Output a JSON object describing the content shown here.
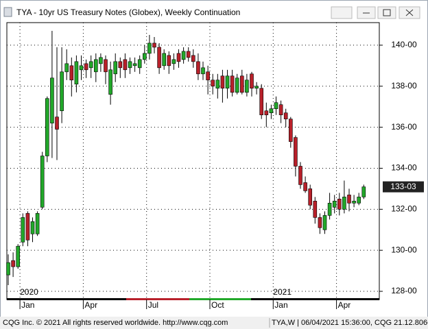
{
  "window": {
    "title": "TYA - 10yr US Treasury Notes (Globex), Weekly Continuation"
  },
  "footer": {
    "left": "CQG Inc. © 2021 All rights reserved worldwide. http://www.cqg.com",
    "right": "TYA,W | 06/04/2021 15:36:00, CQG 21.12.8066"
  },
  "chart_data": {
    "type": "candlestick",
    "up_color": "#22a82a",
    "down_color": "#b8202a",
    "grid": true,
    "categories": [
      null,
      null,
      null,
      null,
      null,
      null,
      null,
      null,
      null,
      null,
      null,
      null,
      null,
      null,
      null,
      null,
      null,
      null,
      null,
      null,
      null,
      null,
      null,
      null,
      null,
      null,
      null,
      null,
      null,
      null,
      null,
      null,
      null,
      null,
      null,
      null,
      null,
      null,
      null,
      null,
      null,
      null,
      null,
      null,
      null,
      null,
      null,
      null,
      null,
      null,
      null,
      null,
      null,
      null,
      null,
      null,
      null,
      null,
      null,
      null,
      null,
      null,
      null,
      null,
      null,
      null,
      null,
      null,
      null,
      null,
      null,
      null,
      null,
      null
    ],
    "open": [
      128.8,
      129.5,
      129.2,
      130.4,
      131.8,
      130.8,
      130.8,
      132.1,
      134.6,
      136.2,
      136.5,
      136.8,
      138.7,
      139.0,
      138.1,
      138.8,
      139.1,
      138.9,
      138.7,
      139.1,
      139.3,
      137.6,
      138.6,
      139.2,
      139.3,
      138.9,
      139.0,
      138.9,
      139.3,
      139.6,
      140.1,
      139.9,
      139.0,
      139.5,
      139.1,
      139.6,
      139.3,
      139.7,
      139.5,
      139.2,
      138.6,
      138.7,
      138.3,
      137.9,
      138.5,
      137.9,
      138.5,
      137.7,
      138.5,
      137.7,
      138.6,
      137.9,
      137.9,
      136.8,
      136.7,
      136.9,
      137.1,
      136.7,
      136.4,
      135.5,
      134.1,
      133.3,
      133.0,
      132.4,
      131.6,
      131.0,
      131.7,
      132.1,
      132.5,
      132.0,
      132.7,
      132.3,
      132.3,
      132.6
    ],
    "high": [
      129.8,
      129.9,
      130.3,
      131.8,
      131.9,
      131.6,
      131.9,
      134.8,
      137.5,
      140.7,
      139.9,
      139.9,
      139.8,
      139.4,
      139.5,
      139.5,
      139.3,
      139.5,
      139.6,
      139.6,
      139.5,
      139.2,
      139.6,
      139.4,
      139.6,
      139.4,
      139.4,
      139.5,
      140.0,
      140.5,
      140.4,
      140.1,
      139.8,
      139.7,
      139.6,
      139.8,
      139.9,
      139.9,
      139.8,
      139.6,
      139.2,
      139.0,
      138.6,
      138.6,
      138.8,
      138.8,
      138.8,
      138.6,
      138.8,
      138.6,
      138.7,
      138.2,
      138.1,
      137.2,
      137.1,
      137.5,
      137.3,
      136.9,
      136.5,
      135.6,
      134.3,
      133.6,
      133.2,
      132.6,
      131.8,
      131.9,
      132.8,
      132.7,
      132.8,
      133.4,
      133.0,
      132.7,
      132.8,
      133.2
    ],
    "low": [
      128.3,
      128.7,
      129.1,
      130.2,
      130.2,
      130.4,
      130.7,
      132.0,
      134.3,
      134.5,
      134.4,
      136.2,
      138.3,
      137.5,
      137.7,
      138.3,
      138.4,
      138.4,
      138.2,
      138.7,
      138.1,
      137.1,
      138.2,
      138.4,
      138.4,
      138.6,
      138.7,
      138.6,
      139.1,
      139.3,
      139.6,
      138.6,
      138.8,
      138.6,
      138.8,
      138.9,
      139.1,
      139.2,
      138.9,
      138.3,
      138.3,
      137.6,
      137.6,
      137.4,
      137.2,
      137.4,
      137.5,
      137.6,
      137.6,
      137.5,
      137.5,
      137.6,
      136.4,
      136.0,
      136.4,
      136.6,
      136.2,
      136.0,
      135.0,
      133.6,
      133.0,
      132.8,
      132.0,
      131.3,
      130.8,
      130.8,
      131.5,
      131.8,
      131.7,
      131.8,
      131.9,
      132.1,
      132.2,
      132.5
    ],
    "close": [
      129.4,
      129.2,
      130.2,
      131.6,
      130.5,
      131.4,
      131.8,
      134.6,
      137.4,
      138.4,
      135.9,
      138.7,
      139.1,
      138.3,
      139.2,
      139.0,
      138.8,
      139.2,
      139.3,
      139.4,
      138.7,
      138.8,
      139.2,
      138.9,
      138.8,
      139.2,
      139.1,
      139.3,
      139.6,
      140.1,
      139.9,
      138.9,
      139.6,
      139.0,
      139.3,
      139.2,
      139.7,
      139.4,
      139.2,
      138.6,
      138.9,
      138.3,
      138.0,
      138.3,
      137.9,
      138.5,
      137.7,
      138.4,
      137.7,
      138.3,
      137.9,
      138.0,
      136.6,
      136.6,
      136.9,
      137.2,
      136.6,
      136.4,
      135.3,
      134.1,
      133.2,
      132.9,
      132.2,
      131.6,
      131.1,
      131.7,
      132.3,
      132.4,
      132.0,
      132.6,
      132.3,
      132.4,
      132.6,
      133.09375
    ],
    "ylim": [
      127.6,
      141.1
    ],
    "yticks": [
      {
        "value": 128,
        "label": "128-00"
      },
      {
        "value": 130,
        "label": "130-00"
      },
      {
        "value": 132,
        "label": "132-00"
      },
      {
        "value": 134,
        "label": "134-00"
      },
      {
        "value": 136,
        "label": "136-00"
      },
      {
        "value": 138,
        "label": "138-00"
      },
      {
        "value": 140,
        "label": "140-00"
      }
    ],
    "xticks": [
      {
        "value": 1,
        "label": "Jan"
      },
      {
        "value": 14,
        "label": "Apr"
      },
      {
        "value": 27,
        "label": "Jul"
      },
      {
        "value": 40,
        "label": "Oct"
      },
      {
        "value": 53,
        "label": "Jan"
      },
      {
        "value": 66,
        "label": "Apr"
      }
    ],
    "year_labels": [
      {
        "value": 1,
        "label": "2020"
      },
      {
        "value": 53,
        "label": "2021"
      }
    ],
    "last_price": {
      "value": 133.09375,
      "label": "133-03"
    }
  }
}
